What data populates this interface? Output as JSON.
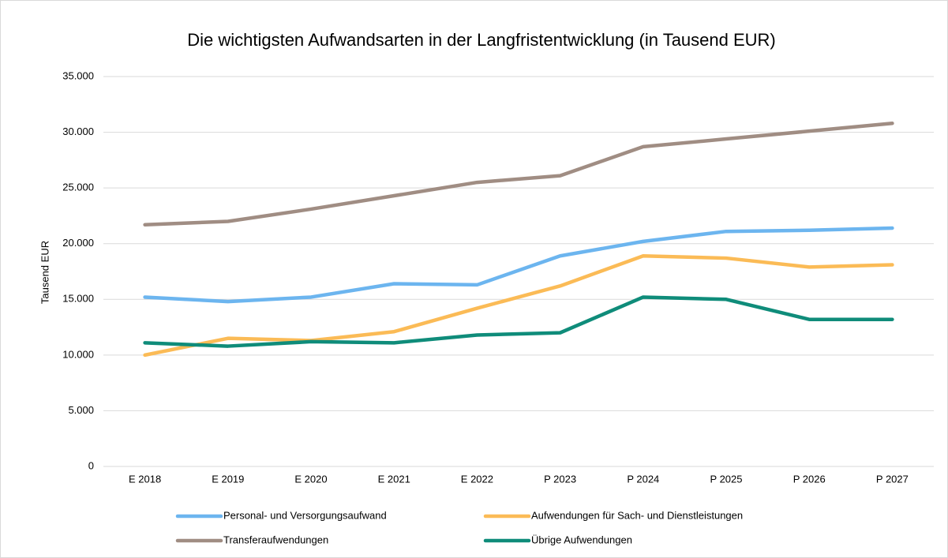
{
  "chart_data": {
    "type": "line",
    "title": "Die wichtigsten Aufwandsarten in der Langfristentwicklung (in Tausend EUR)",
    "y_label": "Tausend EUR",
    "categories": [
      "E 2018",
      "E 2019",
      "E 2020",
      "E 2021",
      "E 2022",
      "P 2023",
      "P 2024",
      "P 2025",
      "P 2026",
      "P 2027"
    ],
    "series": [
      {
        "name": "Personal- und Versorgungsaufwand",
        "color": "#6cb5ef",
        "values": [
          15200,
          14800,
          15200,
          16400,
          16300,
          18900,
          20200,
          21100,
          21200,
          21400
        ]
      },
      {
        "name": "Aufwendungen für Sach- und Dienstleistungen",
        "color": "#fbbb56",
        "values": [
          10000,
          11500,
          11300,
          12100,
          14200,
          16200,
          18900,
          18700,
          17900,
          18100
        ]
      },
      {
        "name": "Transferaufwendungen",
        "color": "#a08d83",
        "values": [
          21700,
          22000,
          23100,
          24300,
          25500,
          26100,
          28700,
          29400,
          30100,
          30800
        ]
      },
      {
        "name": "Übrige Aufwendungen",
        "color": "#0f8c7a",
        "values": [
          11100,
          10800,
          11200,
          11100,
          11800,
          12000,
          15200,
          15000,
          13200,
          13200
        ]
      }
    ],
    "ylim": [
      0,
      35000
    ],
    "yticks": [
      0,
      {
        "value": 5000,
        "label": "5.000"
      },
      {
        "value": 10000,
        "label": "10.000"
      },
      {
        "value": 15000,
        "label": "15.000"
      },
      {
        "value": 20000,
        "label": "20.000"
      },
      {
        "value": 25000,
        "label": "25.000"
      },
      {
        "value": 30000,
        "label": "30.000"
      },
      {
        "value": 35000,
        "label": "35.000"
      }
    ],
    "grid": true
  }
}
